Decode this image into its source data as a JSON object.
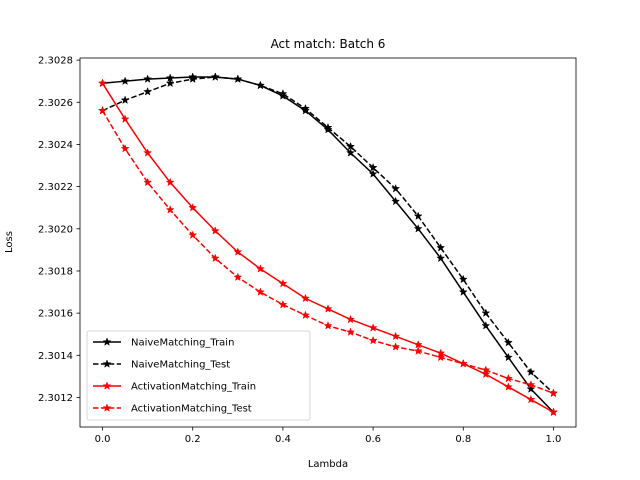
{
  "chart_data": {
    "type": "line",
    "title": "Act match: Batch 6",
    "xlabel": "Lambda",
    "ylabel": "Loss",
    "xlim": [
      -0.05,
      1.05
    ],
    "ylim": [
      2.30106,
      2.30281
    ],
    "xticks": [
      0.0,
      0.2,
      0.4,
      0.6,
      0.8,
      1.0
    ],
    "xtick_labels": [
      "0.0",
      "0.2",
      "0.4",
      "0.6",
      "0.8",
      "1.0"
    ],
    "yticks": [
      2.3012,
      2.3014,
      2.3016,
      2.3018,
      2.302,
      2.3022,
      2.3024,
      2.3026,
      2.3028
    ],
    "ytick_labels": [
      "2.3012",
      "2.3014",
      "2.3016",
      "2.3018",
      "2.3020",
      "2.3022",
      "2.3024",
      "2.3026",
      "2.3028"
    ],
    "grid": false,
    "legend_position": "lower-left",
    "x": [
      0.0,
      0.05,
      0.1,
      0.15,
      0.2,
      0.25,
      0.3,
      0.35,
      0.4,
      0.45,
      0.5,
      0.55,
      0.6,
      0.65,
      0.7,
      0.75,
      0.8,
      0.85,
      0.9,
      0.95,
      1.0
    ],
    "series": [
      {
        "name": "NaiveMatching_Train",
        "color": "#000000",
        "linestyle": "solid",
        "marker": "star",
        "values": [
          2.30269,
          2.3027,
          2.30271,
          2.302715,
          2.30272,
          2.30272,
          2.30271,
          2.30268,
          2.30263,
          2.30256,
          2.30247,
          2.30236,
          2.30226,
          2.30213,
          2.302,
          2.30186,
          2.3017,
          2.30154,
          2.30139,
          2.30124,
          2.30113
        ]
      },
      {
        "name": "NaiveMatching_Test",
        "color": "#000000",
        "linestyle": "dashed",
        "marker": "star",
        "values": [
          2.30256,
          2.30261,
          2.30265,
          2.30269,
          2.30271,
          2.30272,
          2.30271,
          2.30268,
          2.30264,
          2.30257,
          2.30248,
          2.30239,
          2.30229,
          2.30219,
          2.30206,
          2.30191,
          2.30176,
          2.3016,
          2.30146,
          2.30132,
          2.30122
        ]
      },
      {
        "name": "ActivationMatching_Train",
        "color": "#ff0000",
        "linestyle": "solid",
        "marker": "star",
        "values": [
          2.30269,
          2.30252,
          2.30236,
          2.30222,
          2.3021,
          2.30199,
          2.30189,
          2.30181,
          2.30174,
          2.30167,
          2.30162,
          2.30157,
          2.30153,
          2.30149,
          2.30145,
          2.30141,
          2.30136,
          2.30131,
          2.30125,
          2.30119,
          2.30113
        ]
      },
      {
        "name": "ActivationMatching_Test",
        "color": "#ff0000",
        "linestyle": "dashed",
        "marker": "star",
        "values": [
          2.30256,
          2.30238,
          2.30222,
          2.30209,
          2.30197,
          2.30186,
          2.30177,
          2.3017,
          2.30164,
          2.30159,
          2.30154,
          2.30151,
          2.30147,
          2.30144,
          2.30142,
          2.30139,
          2.30136,
          2.30133,
          2.30129,
          2.30126,
          2.30122
        ]
      }
    ]
  }
}
